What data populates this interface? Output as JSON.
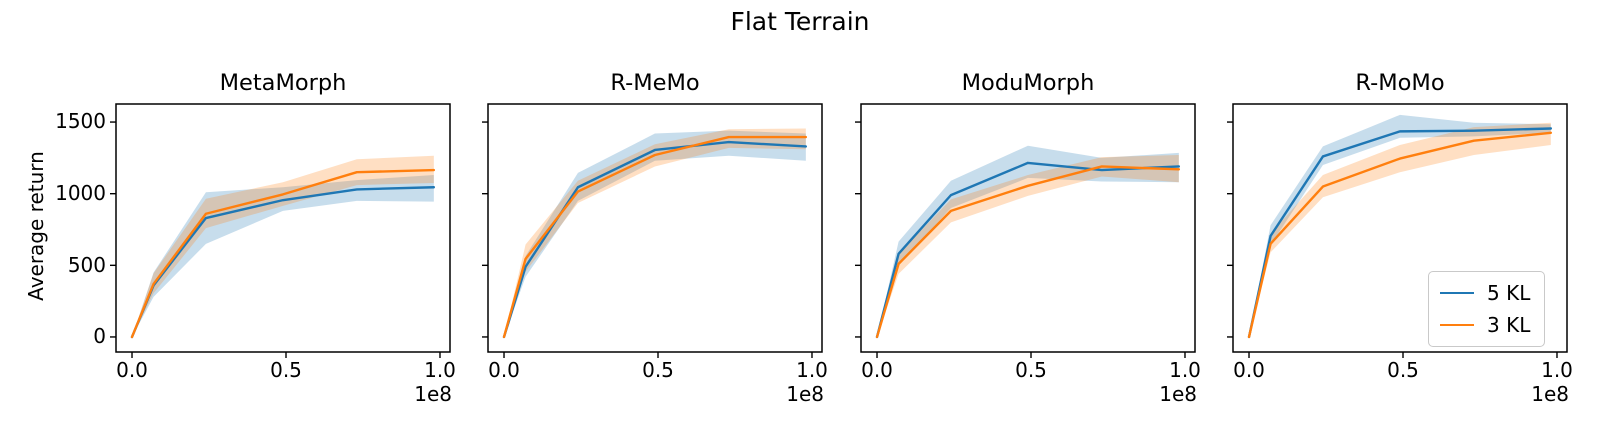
{
  "figure": {
    "title": "Flat Terrain",
    "ylabel": "Average return",
    "background": "#ffffff",
    "axis_color": "#000000",
    "xticklabels": [
      "0.0",
      "0.5",
      "1.0"
    ],
    "yticklabels": [
      "0",
      "500",
      "1000",
      "1500"
    ],
    "offset_label": "1e8",
    "legend": {
      "position": "lower-right-of-last-subplot",
      "items": [
        {
          "label": "5 KL",
          "color": "#1f77b4"
        },
        {
          "label": "3 KL",
          "color": "#ff7f0e"
        }
      ]
    }
  },
  "chart_data": [
    {
      "type": "line",
      "title": "MetaMorph",
      "x": [
        0,
        0.07,
        0.24,
        0.49,
        0.73,
        0.98
      ],
      "x_unit": "1e8",
      "xlim": [
        -0.052,
        1.0325
      ],
      "ylim": [
        -105,
        1626
      ],
      "xticks": [
        0,
        0.5,
        1.0
      ],
      "yticks": [
        0,
        500,
        1000,
        1500
      ],
      "band_opacity": 0.25,
      "series": [
        {
          "name": "5 KL",
          "color": "#1f77b4",
          "values": [
            0,
            360,
            830,
            955,
            1030,
            1045
          ],
          "band_low": [
            0,
            280,
            650,
            880,
            950,
            945
          ],
          "band_high": [
            0,
            450,
            1010,
            1045,
            1095,
            1130
          ]
        },
        {
          "name": "3 KL",
          "color": "#ff7f0e",
          "values": [
            0,
            370,
            860,
            995,
            1150,
            1165
          ],
          "band_low": [
            0,
            305,
            760,
            915,
            1060,
            1075
          ],
          "band_high": [
            0,
            445,
            965,
            1080,
            1240,
            1265
          ]
        }
      ]
    },
    {
      "type": "line",
      "title": "R-MeMo",
      "x": [
        0,
        0.07,
        0.24,
        0.49,
        0.73,
        0.98
      ],
      "x_unit": "1e8",
      "xlim": [
        -0.052,
        1.0325
      ],
      "ylim": [
        -105,
        1626
      ],
      "xticks": [
        0,
        0.5,
        1.0
      ],
      "yticks": [
        0,
        500,
        1000,
        1500
      ],
      "band_opacity": 0.25,
      "series": [
        {
          "name": "5 KL",
          "color": "#1f77b4",
          "values": [
            0,
            490,
            1045,
            1305,
            1360,
            1330
          ],
          "band_low": [
            0,
            420,
            950,
            1230,
            1265,
            1230
          ],
          "band_high": [
            0,
            565,
            1145,
            1420,
            1440,
            1420
          ]
        },
        {
          "name": "3 KL",
          "color": "#ff7f0e",
          "values": [
            0,
            545,
            1015,
            1270,
            1395,
            1395
          ],
          "band_low": [
            0,
            455,
            935,
            1190,
            1320,
            1310
          ],
          "band_high": [
            0,
            645,
            1090,
            1345,
            1450,
            1455
          ]
        }
      ]
    },
    {
      "type": "line",
      "title": "ModuMorph",
      "x": [
        0,
        0.07,
        0.24,
        0.49,
        0.73,
        0.98
      ],
      "x_unit": "1e8",
      "xlim": [
        -0.052,
        1.0325
      ],
      "ylim": [
        -105,
        1626
      ],
      "xticks": [
        0,
        0.5,
        1.0
      ],
      "yticks": [
        0,
        500,
        1000,
        1500
      ],
      "band_opacity": 0.25,
      "series": [
        {
          "name": "5 KL",
          "color": "#1f77b4",
          "values": [
            0,
            580,
            990,
            1215,
            1165,
            1190
          ],
          "band_low": [
            0,
            500,
            900,
            1110,
            1085,
            1080
          ],
          "band_high": [
            0,
            665,
            1090,
            1335,
            1250,
            1285
          ]
        },
        {
          "name": "3 KL",
          "color": "#ff7f0e",
          "values": [
            0,
            510,
            880,
            1055,
            1190,
            1170
          ],
          "band_low": [
            0,
            440,
            800,
            985,
            1120,
            1080
          ],
          "band_high": [
            0,
            580,
            960,
            1130,
            1255,
            1270
          ]
        }
      ]
    },
    {
      "type": "line",
      "title": "R-MoMo",
      "x": [
        0,
        0.07,
        0.24,
        0.49,
        0.73,
        0.98
      ],
      "x_unit": "1e8",
      "xlim": [
        -0.052,
        1.0325
      ],
      "ylim": [
        -105,
        1626
      ],
      "xticks": [
        0,
        0.5,
        1.0
      ],
      "yticks": [
        0,
        500,
        1000,
        1500
      ],
      "band_opacity": 0.25,
      "series": [
        {
          "name": "5 KL",
          "color": "#1f77b4",
          "values": [
            0,
            705,
            1260,
            1435,
            1440,
            1455
          ],
          "band_low": [
            0,
            640,
            1200,
            1390,
            1400,
            1425
          ],
          "band_high": [
            0,
            780,
            1330,
            1550,
            1495,
            1485
          ]
        },
        {
          "name": "3 KL",
          "color": "#ff7f0e",
          "values": [
            0,
            650,
            1050,
            1245,
            1370,
            1425
          ],
          "band_low": [
            0,
            590,
            975,
            1150,
            1270,
            1340
          ],
          "band_high": [
            0,
            720,
            1130,
            1340,
            1465,
            1495
          ]
        }
      ]
    }
  ]
}
